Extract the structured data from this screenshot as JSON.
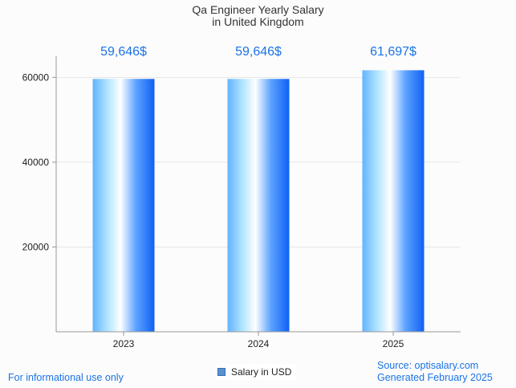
{
  "chart_data": {
    "type": "bar",
    "title_lines": [
      "Qa Engineer Yearly Salary",
      "in United Kingdom"
    ],
    "categories": [
      "2023",
      "2024",
      "2025"
    ],
    "values": [
      59646,
      59646,
      61697
    ],
    "data_labels": [
      "59,646$",
      "59,646$",
      "61,697$"
    ],
    "series_name": "Salary in USD",
    "ylim": [
      0,
      65000
    ],
    "yticks": [
      20000,
      40000,
      60000
    ],
    "grid": true,
    "legend_position": "bottom-center"
  },
  "footer": {
    "disclaimer": "For informational use only",
    "source": "Source: optisalary.com",
    "generated": "Generated February 2025"
  },
  "colors": {
    "bar_light": "#d6f4fc",
    "bar_mid": "#62b4ff",
    "bar_dark": "#0f60f5",
    "label": "#1a73e8",
    "grid": "#e6e6e6",
    "axis": "#999999"
  }
}
